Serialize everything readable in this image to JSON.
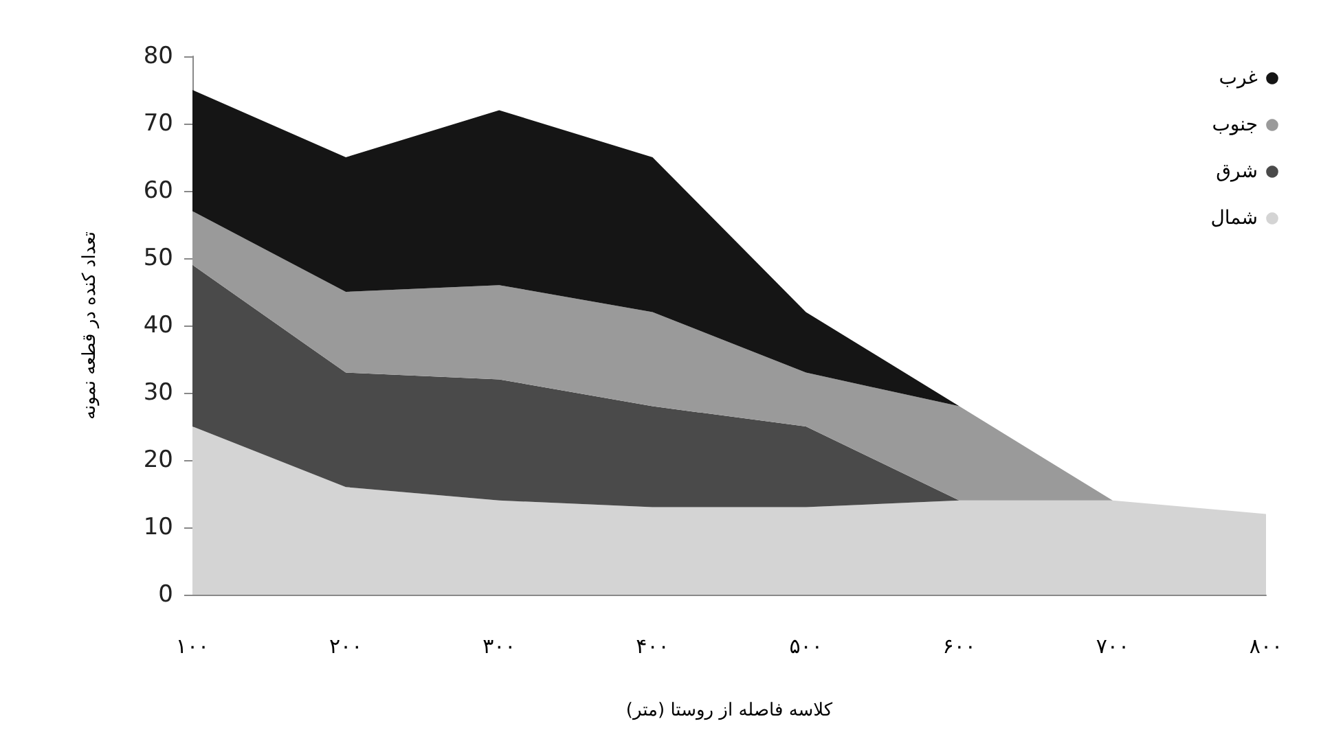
{
  "chart_data": {
    "type": "area",
    "stacked": true,
    "xlabel": "کلاسه فاصله از روستا (متر)",
    "ylabel": "تعداد کنده در قطعه نمونه",
    "categories": [
      "۱۰۰",
      "۲۰۰",
      "۳۰۰",
      "۴۰۰",
      "۵۰۰",
      "۶۰۰",
      "۷۰۰",
      "۸۰۰"
    ],
    "series": [
      {
        "name": "شمال",
        "color": "#d4d4d4",
        "values": [
          25,
          16,
          14,
          13,
          13,
          14,
          14,
          12
        ]
      },
      {
        "name": "شرق",
        "color": "#4a4a4a",
        "values": [
          24,
          17,
          18,
          15,
          12,
          0,
          0,
          0
        ]
      },
      {
        "name": "جنوب",
        "color": "#9a9a9a",
        "values": [
          8,
          12,
          14,
          14,
          8,
          14,
          0,
          0
        ]
      },
      {
        "name": "غرب",
        "color": "#151515",
        "values": [
          18,
          20,
          26,
          23,
          9,
          0,
          0,
          0
        ]
      }
    ],
    "ylim": [
      0,
      80
    ],
    "yticks": [
      0,
      10,
      20,
      30,
      40,
      50,
      60,
      70,
      80
    ],
    "grid": false,
    "legend": "top right"
  }
}
